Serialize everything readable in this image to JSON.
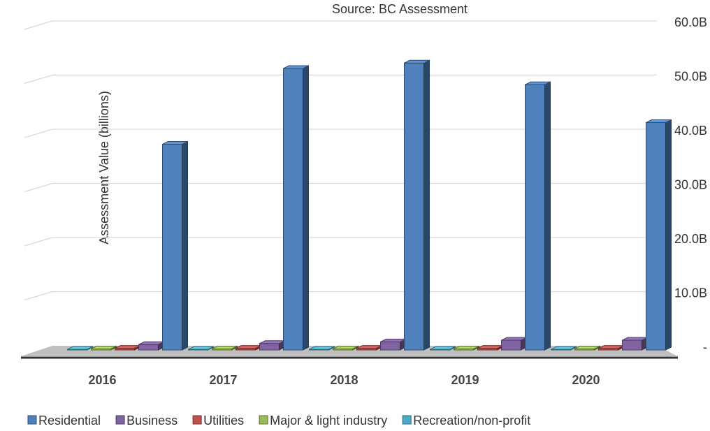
{
  "chart_data": {
    "type": "bar3d",
    "subtitle": "Source: BC Assessment",
    "y_label": "Assessment Value (billions)",
    "categories": [
      "2016",
      "2017",
      "2018",
      "2019",
      "2020"
    ],
    "series": [
      {
        "name": "Residential",
        "color": "#4f81bd",
        "values": [
          38,
          52,
          53,
          49,
          42
        ]
      },
      {
        "name": "Business",
        "color": "#8064a2",
        "values": [
          1.0,
          1.2,
          1.5,
          1.8,
          1.8
        ]
      },
      {
        "name": "Utilities",
        "color": "#c0504d",
        "values": [
          0.3,
          0.3,
          0.3,
          0.3,
          0.3
        ]
      },
      {
        "name": "Major & light industry",
        "color": "#9bbb59",
        "values": [
          0.2,
          0.2,
          0.2,
          0.2,
          0.2
        ]
      },
      {
        "name": "Recreation/non-profit",
        "color": "#4bacc6",
        "values": [
          0.1,
          0.1,
          0.1,
          0.1,
          0.1
        ]
      }
    ],
    "ylim": [
      0,
      60
    ],
    "yticks": [
      {
        "value": 0,
        "label": "-"
      },
      {
        "value": 10,
        "label": "10.0B"
      },
      {
        "value": 20,
        "label": "20.0B"
      },
      {
        "value": 30,
        "label": "30.0B"
      },
      {
        "value": 40,
        "label": "40.0B"
      },
      {
        "value": 50,
        "label": "50.0B"
      },
      {
        "value": 60,
        "label": "60.0B"
      }
    ],
    "grid": true,
    "legend": "bottom"
  }
}
